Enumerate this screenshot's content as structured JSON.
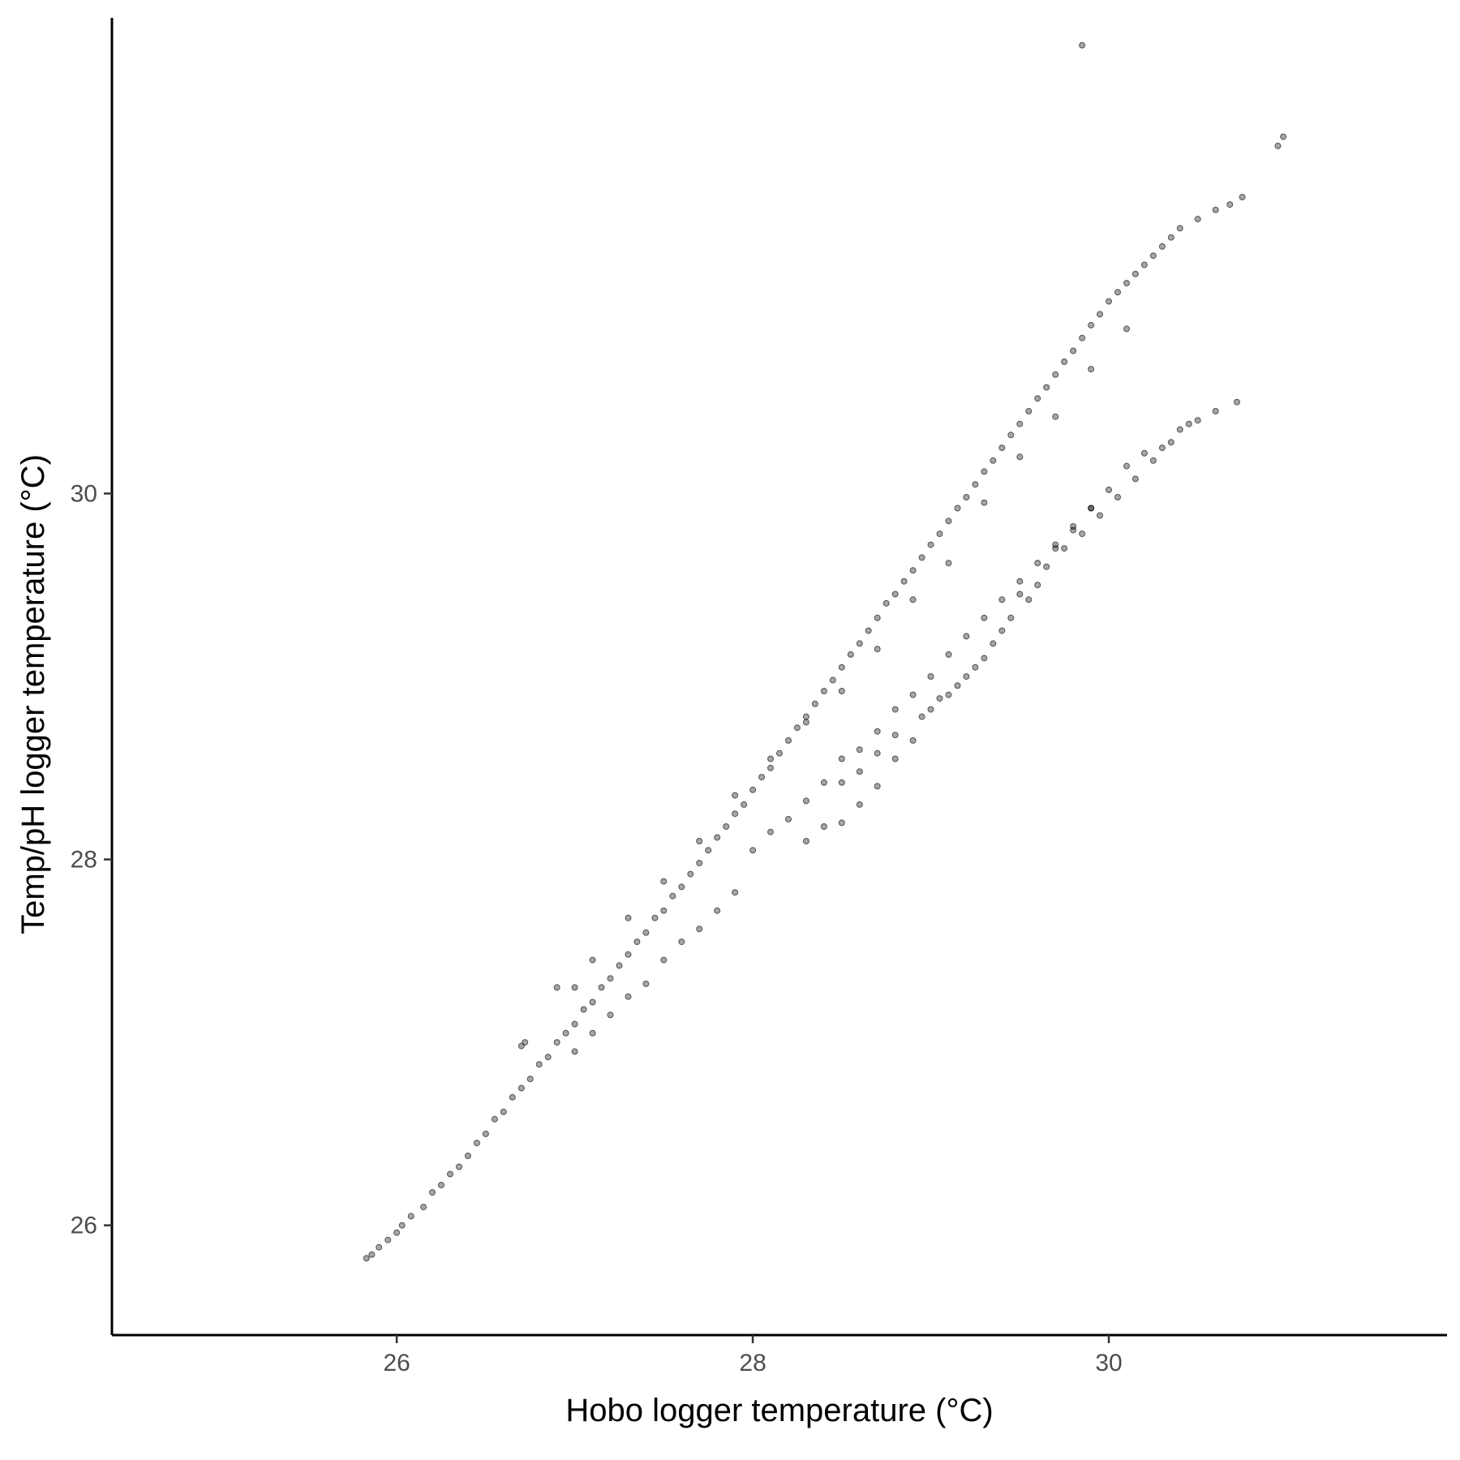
{
  "chart_data": {
    "type": "scatter",
    "title": "",
    "xlabel": "Hobo logger temperature (°C)",
    "ylabel": "Temp/pH logger temperature (°C)",
    "xlim": [
      24.4,
      31.9
    ],
    "ylim": [
      25.4,
      32.6
    ],
    "x_ticks": [
      26,
      28,
      30
    ],
    "y_ticks": [
      26,
      28,
      30
    ],
    "x_tick_labels": [
      "26",
      "28",
      "30"
    ],
    "y_tick_labels": [
      "26",
      "28",
      "30"
    ],
    "grid": false,
    "legend": "none",
    "point_color": "#000000",
    "point_alpha": 0.35,
    "notes": "dense point cloud; points sampled along the observed band",
    "points": [
      [
        25.83,
        25.82
      ],
      [
        25.86,
        25.84
      ],
      [
        25.9,
        25.88
      ],
      [
        25.95,
        25.92
      ],
      [
        26.0,
        25.96
      ],
      [
        26.03,
        26.0
      ],
      [
        26.08,
        26.05
      ],
      [
        26.15,
        26.1
      ],
      [
        26.2,
        26.18
      ],
      [
        26.25,
        26.22
      ],
      [
        26.3,
        26.28
      ],
      [
        26.35,
        26.32
      ],
      [
        26.4,
        26.38
      ],
      [
        26.45,
        26.45
      ],
      [
        26.5,
        26.5
      ],
      [
        26.55,
        26.58
      ],
      [
        26.6,
        26.62
      ],
      [
        26.65,
        26.7
      ],
      [
        26.7,
        26.75
      ],
      [
        26.75,
        26.8
      ],
      [
        26.8,
        26.88
      ],
      [
        26.85,
        26.92
      ],
      [
        26.9,
        27.0
      ],
      [
        26.95,
        27.05
      ],
      [
        27.0,
        27.1
      ],
      [
        27.05,
        27.18
      ],
      [
        27.1,
        27.22
      ],
      [
        27.15,
        27.3
      ],
      [
        27.2,
        27.35
      ],
      [
        27.25,
        27.42
      ],
      [
        27.3,
        27.48
      ],
      [
        27.35,
        27.55
      ],
      [
        27.4,
        27.6
      ],
      [
        27.45,
        27.68
      ],
      [
        27.5,
        27.72
      ],
      [
        27.55,
        27.8
      ],
      [
        27.6,
        27.85
      ],
      [
        27.65,
        27.92
      ],
      [
        27.7,
        27.98
      ],
      [
        27.75,
        28.05
      ],
      [
        27.8,
        28.12
      ],
      [
        27.85,
        28.18
      ],
      [
        27.9,
        28.25
      ],
      [
        27.95,
        28.3
      ],
      [
        28.0,
        28.38
      ],
      [
        28.05,
        28.45
      ],
      [
        28.1,
        28.5
      ],
      [
        28.15,
        28.58
      ],
      [
        28.2,
        28.65
      ],
      [
        28.25,
        28.72
      ],
      [
        28.3,
        28.78
      ],
      [
        28.35,
        28.85
      ],
      [
        28.4,
        28.92
      ],
      [
        28.45,
        28.98
      ],
      [
        28.5,
        29.05
      ],
      [
        28.55,
        29.12
      ],
      [
        28.6,
        29.18
      ],
      [
        28.65,
        29.25
      ],
      [
        28.7,
        29.32
      ],
      [
        28.75,
        29.4
      ],
      [
        28.8,
        29.45
      ],
      [
        28.85,
        29.52
      ],
      [
        28.9,
        29.58
      ],
      [
        28.95,
        29.65
      ],
      [
        29.0,
        29.72
      ],
      [
        29.05,
        29.78
      ],
      [
        29.1,
        29.85
      ],
      [
        29.15,
        29.92
      ],
      [
        29.2,
        29.98
      ],
      [
        29.25,
        30.05
      ],
      [
        29.3,
        30.12
      ],
      [
        29.35,
        30.18
      ],
      [
        29.4,
        30.25
      ],
      [
        29.45,
        30.32
      ],
      [
        29.5,
        30.38
      ],
      [
        29.55,
        30.45
      ],
      [
        29.6,
        30.52
      ],
      [
        29.65,
        30.58
      ],
      [
        29.7,
        30.65
      ],
      [
        29.75,
        30.72
      ],
      [
        29.8,
        30.78
      ],
      [
        29.85,
        30.85
      ],
      [
        29.9,
        30.92
      ],
      [
        29.95,
        30.98
      ],
      [
        30.0,
        31.05
      ],
      [
        30.05,
        31.1
      ],
      [
        30.1,
        31.15
      ],
      [
        30.15,
        31.2
      ],
      [
        30.2,
        31.25
      ],
      [
        30.25,
        31.3
      ],
      [
        30.3,
        31.35
      ],
      [
        30.35,
        31.4
      ],
      [
        30.4,
        31.45
      ],
      [
        30.5,
        31.5
      ],
      [
        30.6,
        31.55
      ],
      [
        30.68,
        31.58
      ],
      [
        30.75,
        31.62
      ],
      [
        30.95,
        31.9
      ],
      [
        30.98,
        31.95
      ],
      [
        29.85,
        32.45
      ],
      [
        28.3,
        28.1
      ],
      [
        28.4,
        28.18
      ],
      [
        28.5,
        28.2
      ],
      [
        28.6,
        28.3
      ],
      [
        28.7,
        28.4
      ],
      [
        28.8,
        28.55
      ],
      [
        28.9,
        28.65
      ],
      [
        29.0,
        28.82
      ],
      [
        29.1,
        28.9
      ],
      [
        29.2,
        29.0
      ],
      [
        29.3,
        29.1
      ],
      [
        29.4,
        29.25
      ],
      [
        29.5,
        29.45
      ],
      [
        29.6,
        29.5
      ],
      [
        29.7,
        29.72
      ],
      [
        29.8,
        29.82
      ],
      [
        29.9,
        29.92
      ],
      [
        30.0,
        30.02
      ],
      [
        30.1,
        30.15
      ],
      [
        30.2,
        30.22
      ],
      [
        30.3,
        30.25
      ],
      [
        30.4,
        30.35
      ],
      [
        30.5,
        30.4
      ],
      [
        30.6,
        30.45
      ],
      [
        30.72,
        30.5
      ],
      [
        28.0,
        28.05
      ],
      [
        28.1,
        28.15
      ],
      [
        28.2,
        28.22
      ],
      [
        28.3,
        28.32
      ],
      [
        28.4,
        28.42
      ],
      [
        28.5,
        28.55
      ],
      [
        28.6,
        28.6
      ],
      [
        28.7,
        28.7
      ],
      [
        28.8,
        28.82
      ],
      [
        28.9,
        28.9
      ],
      [
        29.0,
        29.0
      ],
      [
        29.1,
        29.12
      ],
      [
        29.2,
        29.22
      ],
      [
        29.3,
        29.32
      ],
      [
        29.4,
        29.42
      ],
      [
        29.5,
        29.52
      ],
      [
        29.6,
        29.62
      ],
      [
        29.7,
        29.7
      ],
      [
        29.8,
        29.8
      ],
      [
        29.9,
        29.92
      ],
      [
        27.0,
        26.95
      ],
      [
        27.1,
        27.05
      ],
      [
        27.2,
        27.15
      ],
      [
        27.3,
        27.25
      ],
      [
        27.4,
        27.32
      ],
      [
        27.5,
        27.45
      ],
      [
        27.6,
        27.55
      ],
      [
        27.7,
        27.62
      ],
      [
        27.8,
        27.72
      ],
      [
        27.9,
        27.82
      ],
      [
        26.7,
        26.98
      ],
      [
        26.72,
        27.0
      ],
      [
        26.9,
        27.3
      ],
      [
        27.0,
        27.3
      ],
      [
        27.1,
        27.45
      ],
      [
        27.3,
        27.68
      ],
      [
        27.5,
        27.88
      ],
      [
        27.7,
        28.1
      ],
      [
        27.9,
        28.35
      ],
      [
        28.1,
        28.55
      ],
      [
        28.3,
        28.75
      ],
      [
        28.5,
        28.92
      ],
      [
        28.7,
        29.15
      ],
      [
        28.9,
        29.42
      ],
      [
        29.1,
        29.62
      ],
      [
        29.3,
        29.95
      ],
      [
        29.5,
        30.2
      ],
      [
        29.7,
        30.42
      ],
      [
        29.9,
        30.68
      ],
      [
        30.1,
        30.9
      ],
      [
        28.5,
        28.42
      ],
      [
        28.6,
        28.48
      ],
      [
        28.7,
        28.58
      ],
      [
        28.8,
        28.68
      ],
      [
        28.95,
        28.78
      ],
      [
        29.05,
        28.88
      ],
      [
        29.15,
        28.95
      ],
      [
        29.25,
        29.05
      ],
      [
        29.35,
        29.18
      ],
      [
        29.45,
        29.32
      ],
      [
        29.55,
        29.42
      ],
      [
        29.65,
        29.6
      ],
      [
        29.75,
        29.7
      ],
      [
        29.85,
        29.78
      ],
      [
        29.95,
        29.88
      ],
      [
        30.05,
        29.98
      ],
      [
        30.15,
        30.08
      ],
      [
        30.25,
        30.18
      ],
      [
        30.35,
        30.28
      ],
      [
        30.45,
        30.38
      ]
    ]
  }
}
